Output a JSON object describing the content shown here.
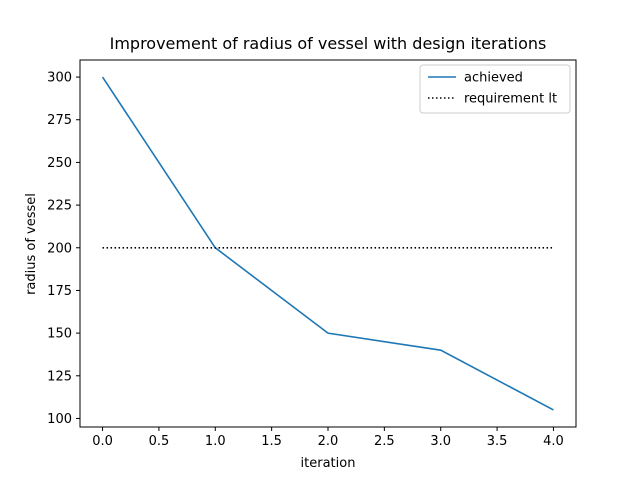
{
  "chart_data": {
    "type": "line",
    "title": "Improvement of radius of vessel with design iterations",
    "xlabel": "iteration",
    "ylabel": "radius of vessel",
    "xlim": [
      -0.2,
      4.2
    ],
    "ylim": [
      95,
      310
    ],
    "x_ticks": [
      0.0,
      0.5,
      1.0,
      1.5,
      2.0,
      2.5,
      3.0,
      3.5,
      4.0
    ],
    "x_tick_labels": [
      "0.0",
      "0.5",
      "1.0",
      "1.5",
      "2.0",
      "2.5",
      "3.0",
      "3.5",
      "4.0"
    ],
    "y_ticks": [
      100,
      125,
      150,
      175,
      200,
      225,
      250,
      275,
      300
    ],
    "y_tick_labels": [
      "100",
      "125",
      "150",
      "175",
      "200",
      "225",
      "250",
      "275",
      "300"
    ],
    "grid": false,
    "legend_placement": "top-right",
    "series": [
      {
        "name": "achieved",
        "style": "solid",
        "color": "#1f77b4",
        "x": [
          0,
          1,
          2,
          3,
          4
        ],
        "y": [
          300,
          200,
          150,
          140,
          105
        ]
      },
      {
        "name": "requirement lt",
        "style": "dotted",
        "color": "#000000",
        "x": [
          0,
          1,
          2,
          3,
          4
        ],
        "y": [
          200,
          200,
          200,
          200,
          200
        ]
      }
    ]
  }
}
